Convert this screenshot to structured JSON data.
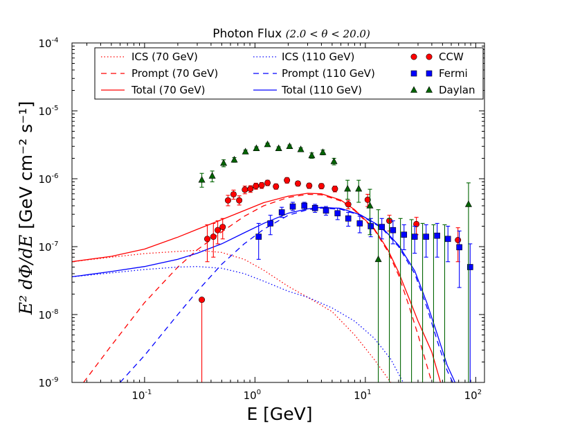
{
  "chart_data": {
    "type": "line",
    "title": "Photon Flux",
    "title_math": "(2.0 < θ < 20.0)",
    "xlabel": "E [GeV]",
    "ylabel_math": "E² dΦ/dE",
    "ylabel_units": "[GeV cm⁻² s⁻¹]",
    "x_scale": "log",
    "y_scale": "log",
    "xlim": [
      0.022,
      120
    ],
    "ylim": [
      1e-09,
      0.0001
    ],
    "x_ticks": [
      {
        "base": "10",
        "exp": "-1",
        "value": 0.1
      },
      {
        "base": "10",
        "exp": "0",
        "value": 1
      },
      {
        "base": "10",
        "exp": "1",
        "value": 10
      },
      {
        "base": "10",
        "exp": "2",
        "value": 100
      }
    ],
    "y_ticks": [
      {
        "base": "10",
        "exp": "-9",
        "value": 1e-09
      },
      {
        "base": "10",
        "exp": "-8",
        "value": 1e-08
      },
      {
        "base": "10",
        "exp": "-7",
        "value": 1e-07
      },
      {
        "base": "10",
        "exp": "-6",
        "value": 1e-06
      },
      {
        "base": "10",
        "exp": "-5",
        "value": 1e-05
      },
      {
        "base": "10",
        "exp": "-4",
        "value": 0.0001
      }
    ],
    "lines": [
      {
        "name": "ICS (70 GeV)",
        "color": "#ff0000",
        "style": "dotted",
        "points": [
          [
            0.022,
            6e-08
          ],
          [
            0.05,
            7e-08
          ],
          [
            0.1,
            7.9e-08
          ],
          [
            0.2,
            8.5e-08
          ],
          [
            0.3,
            8.8e-08
          ],
          [
            0.5,
            8.2e-08
          ],
          [
            0.8,
            6.5e-08
          ],
          [
            1.2,
            4.5e-08
          ],
          [
            2,
            2.6e-08
          ],
          [
            3,
            1.8e-08
          ],
          [
            5,
            1.1e-08
          ],
          [
            8,
            5e-09
          ],
          [
            12,
            2.2e-09
          ],
          [
            17,
            1e-09
          ]
        ]
      },
      {
        "name": "Prompt (70 GeV)",
        "color": "#ff0000",
        "style": "dashed",
        "points": [
          [
            0.028,
            1e-09
          ],
          [
            0.05,
            3.5e-09
          ],
          [
            0.1,
            1.5e-08
          ],
          [
            0.2,
            5e-08
          ],
          [
            0.3,
            9e-08
          ],
          [
            0.5,
            1.65e-07
          ],
          [
            0.8,
            2.8e-07
          ],
          [
            1.2,
            4e-07
          ],
          [
            2,
            5.3e-07
          ],
          [
            3,
            5.9e-07
          ],
          [
            4,
            5.8e-07
          ],
          [
            6,
            4.7e-07
          ],
          [
            8,
            3.4e-07
          ],
          [
            12,
            1.8e-07
          ],
          [
            16,
            8.5e-08
          ],
          [
            20,
            3.8e-08
          ],
          [
            25,
            1.3e-08
          ],
          [
            30,
            5e-09
          ],
          [
            36,
            1.8e-09
          ],
          [
            40,
            1e-09
          ]
        ]
      },
      {
        "name": "Total (70 GeV)",
        "color": "#ff0000",
        "style": "solid",
        "points": [
          [
            0.022,
            6e-08
          ],
          [
            0.05,
            7.2e-08
          ],
          [
            0.1,
            9.2e-08
          ],
          [
            0.2,
            1.38e-07
          ],
          [
            0.3,
            1.8e-07
          ],
          [
            0.5,
            2.5e-07
          ],
          [
            0.8,
            3.4e-07
          ],
          [
            1.2,
            4.45e-07
          ],
          [
            2,
            5.55e-07
          ],
          [
            3,
            6.1e-07
          ],
          [
            4,
            6e-07
          ],
          [
            6,
            4.85e-07
          ],
          [
            8,
            3.5e-07
          ],
          [
            12,
            1.85e-07
          ],
          [
            16,
            9e-08
          ],
          [
            20,
            4.2e-08
          ],
          [
            25,
            1.7e-08
          ],
          [
            30,
            8e-09
          ],
          [
            40,
            2.8e-09
          ],
          [
            48,
            1e-09
          ]
        ]
      },
      {
        "name": "ICS (110 GeV)",
        "color": "#0000ff",
        "style": "dotted",
        "points": [
          [
            0.022,
            3.6e-08
          ],
          [
            0.05,
            4.1e-08
          ],
          [
            0.1,
            4.6e-08
          ],
          [
            0.2,
            5e-08
          ],
          [
            0.3,
            5.1e-08
          ],
          [
            0.5,
            4.8e-08
          ],
          [
            0.8,
            4e-08
          ],
          [
            1.2,
            3.1e-08
          ],
          [
            2,
            2.2e-08
          ],
          [
            3,
            1.8e-08
          ],
          [
            5,
            1.25e-08
          ],
          [
            8,
            8e-09
          ],
          [
            12,
            4.5e-09
          ],
          [
            17,
            2.2e-09
          ],
          [
            22,
            1e-09
          ]
        ]
      },
      {
        "name": "Prompt (110 GeV)",
        "color": "#0000ff",
        "style": "dashed",
        "points": [
          [
            0.06,
            1e-09
          ],
          [
            0.1,
            2.5e-09
          ],
          [
            0.2,
            1e-08
          ],
          [
            0.3,
            2.2e-08
          ],
          [
            0.5,
            5.5e-08
          ],
          [
            0.8,
            1.1e-07
          ],
          [
            1.2,
            1.8e-07
          ],
          [
            2,
            2.9e-07
          ],
          [
            3,
            3.5e-07
          ],
          [
            4,
            3.7e-07
          ],
          [
            6,
            3.55e-07
          ],
          [
            9,
            2.9e-07
          ],
          [
            14,
            1.9e-07
          ],
          [
            20,
            1e-07
          ],
          [
            28,
            4e-08
          ],
          [
            36,
            1.3e-08
          ],
          [
            45,
            4e-09
          ],
          [
            55,
            1.5e-09
          ],
          [
            62,
            1e-09
          ]
        ]
      },
      {
        "name": "Total (110 GeV)",
        "color": "#0000ff",
        "style": "solid",
        "points": [
          [
            0.022,
            3.6e-08
          ],
          [
            0.05,
            4.3e-08
          ],
          [
            0.1,
            5.1e-08
          ],
          [
            0.2,
            6.5e-08
          ],
          [
            0.3,
            8e-08
          ],
          [
            0.5,
            1.1e-07
          ],
          [
            0.8,
            1.6e-07
          ],
          [
            1.2,
            2.2e-07
          ],
          [
            2,
            3.1e-07
          ],
          [
            3,
            3.6e-07
          ],
          [
            4,
            3.8e-07
          ],
          [
            6,
            3.65e-07
          ],
          [
            9,
            2.95e-07
          ],
          [
            14,
            1.95e-07
          ],
          [
            20,
            1.05e-07
          ],
          [
            28,
            4.4e-08
          ],
          [
            36,
            1.5e-08
          ],
          [
            45,
            5e-09
          ],
          [
            55,
            1.8e-09
          ],
          [
            65,
            1e-09
          ]
        ]
      }
    ],
    "point_series": [
      {
        "name": "CCW",
        "color": "#ff0000",
        "marker": "circle",
        "points": [
          {
            "x": 0.33,
            "y": 1.65e-08,
            "lo": 1e-09,
            "hi": 1.65e-08
          },
          {
            "x": 0.37,
            "y": 1.3e-07,
            "lo": 6e-08,
            "hi": 2.1e-07
          },
          {
            "x": 0.42,
            "y": 1.4e-07,
            "lo": 7e-08,
            "hi": 2.2e-07
          },
          {
            "x": 0.46,
            "y": 1.75e-07,
            "lo": 1.1e-07,
            "hi": 2.4e-07
          },
          {
            "x": 0.51,
            "y": 1.95e-07,
            "lo": 1.3e-07,
            "hi": 2.6e-07
          },
          {
            "x": 0.57,
            "y": 4.8e-07,
            "lo": 4e-07,
            "hi": 5.7e-07
          },
          {
            "x": 0.64,
            "y": 5.9e-07,
            "lo": 5e-07,
            "hi": 6.8e-07
          },
          {
            "x": 0.72,
            "y": 4.8e-07,
            "lo": 4.1e-07,
            "hi": 5.6e-07
          },
          {
            "x": 0.81,
            "y": 6.9e-07,
            "lo": 6e-07,
            "hi": 7.8e-07
          },
          {
            "x": 0.91,
            "y": 7.1e-07,
            "lo": 6.3e-07,
            "hi": 7.9e-07
          },
          {
            "x": 1.02,
            "y": 7.8e-07,
            "lo": 7e-07,
            "hi": 8.6e-07
          },
          {
            "x": 1.15,
            "y": 8e-07,
            "lo": 7.2e-07,
            "hi": 8.8e-07
          },
          {
            "x": 1.3,
            "y": 8.7e-07,
            "lo": 7.9e-07,
            "hi": 9.5e-07
          },
          {
            "x": 1.55,
            "y": 7.7e-07,
            "lo": 7e-07,
            "hi": 8.4e-07
          },
          {
            "x": 1.95,
            "y": 9.5e-07,
            "lo": 8.6e-07,
            "hi": 1.04e-06
          },
          {
            "x": 2.45,
            "y": 8.5e-07,
            "lo": 7.8e-07,
            "hi": 9.2e-07
          },
          {
            "x": 3.1,
            "y": 7.9e-07,
            "lo": 7.2e-07,
            "hi": 8.6e-07
          },
          {
            "x": 4.0,
            "y": 7.8e-07,
            "lo": 7.1e-07,
            "hi": 8.5e-07
          },
          {
            "x": 5.3,
            "y": 7.1e-07,
            "lo": 6.4e-07,
            "hi": 7.8e-07
          },
          {
            "x": 7.0,
            "y": 4.2e-07,
            "lo": 3.6e-07,
            "hi": 4.8e-07
          },
          {
            "x": 10.5,
            "y": 4.9e-07,
            "lo": 3.9e-07,
            "hi": 5.9e-07
          },
          {
            "x": 16.5,
            "y": 2.4e-07,
            "lo": 1.7e-07,
            "hi": 2.9e-07
          },
          {
            "x": 29,
            "y": 2.15e-07,
            "lo": 1.5e-07,
            "hi": 2.7e-07
          },
          {
            "x": 69,
            "y": 1.25e-07,
            "lo": 6e-08,
            "hi": 1.9e-07
          }
        ]
      },
      {
        "name": "Fermi",
        "color": "#0000ff",
        "marker": "square",
        "points": [
          {
            "x": 1.08,
            "y": 1.4e-07,
            "lo": 6.5e-08,
            "hi": 2.2e-07
          },
          {
            "x": 1.38,
            "y": 2.2e-07,
            "lo": 1.5e-07,
            "hi": 2.9e-07
          },
          {
            "x": 1.75,
            "y": 3.2e-07,
            "lo": 2.7e-07,
            "hi": 3.8e-07
          },
          {
            "x": 2.2,
            "y": 3.9e-07,
            "lo": 3.4e-07,
            "hi": 4.5e-07
          },
          {
            "x": 2.8,
            "y": 4e-07,
            "lo": 3.5e-07,
            "hi": 4.5e-07
          },
          {
            "x": 3.5,
            "y": 3.7e-07,
            "lo": 3.2e-07,
            "hi": 4.2e-07
          },
          {
            "x": 4.4,
            "y": 3.4e-07,
            "lo": 2.9e-07,
            "hi": 3.9e-07
          },
          {
            "x": 5.6,
            "y": 3.1e-07,
            "lo": 2.5e-07,
            "hi": 3.7e-07
          },
          {
            "x": 7.0,
            "y": 2.6e-07,
            "lo": 2e-07,
            "hi": 3.2e-07
          },
          {
            "x": 8.9,
            "y": 2.2e-07,
            "lo": 1.6e-07,
            "hi": 2.8e-07
          },
          {
            "x": 11.2,
            "y": 2e-07,
            "lo": 1.4e-07,
            "hi": 2.6e-07
          },
          {
            "x": 14.1,
            "y": 1.95e-07,
            "lo": 1.3e-07,
            "hi": 2.6e-07
          },
          {
            "x": 17.8,
            "y": 1.75e-07,
            "lo": 1.1e-07,
            "hi": 2.4e-07
          },
          {
            "x": 22.4,
            "y": 1.5e-07,
            "lo": 9e-08,
            "hi": 2.1e-07
          },
          {
            "x": 28,
            "y": 1.4e-07,
            "lo": 8e-08,
            "hi": 2e-07
          },
          {
            "x": 35.5,
            "y": 1.4e-07,
            "lo": 7e-08,
            "hi": 2.1e-07
          },
          {
            "x": 44.7,
            "y": 1.45e-07,
            "lo": 7e-08,
            "hi": 2.2e-07
          },
          {
            "x": 56,
            "y": 1.3e-07,
            "lo": 6e-08,
            "hi": 2e-07
          },
          {
            "x": 71,
            "y": 9.8e-08,
            "lo": 2.5e-08,
            "hi": 1.7e-07
          },
          {
            "x": 89,
            "y": 5e-08,
            "lo": 1e-09,
            "hi": 1.1e-07
          }
        ]
      },
      {
        "name": "Daylan",
        "color": "#006400",
        "marker": "triangle",
        "points": [
          {
            "x": 0.33,
            "y": 9.6e-07,
            "lo": 7.5e-07,
            "hi": 1.2e-06
          },
          {
            "x": 0.41,
            "y": 1.1e-06,
            "lo": 9e-07,
            "hi": 1.3e-06
          },
          {
            "x": 0.52,
            "y": 1.7e-06,
            "lo": 1.5e-06,
            "hi": 1.9e-06
          },
          {
            "x": 0.65,
            "y": 1.9e-06,
            "lo": 1.75e-06,
            "hi": 2.05e-06
          },
          {
            "x": 0.82,
            "y": 2.5e-06,
            "lo": 2.35e-06,
            "hi": 2.65e-06
          },
          {
            "x": 1.03,
            "y": 2.8e-06,
            "lo": 2.65e-06,
            "hi": 2.95e-06
          },
          {
            "x": 1.3,
            "y": 3.2e-06,
            "lo": 3.05e-06,
            "hi": 3.35e-06
          },
          {
            "x": 1.64,
            "y": 2.8e-06,
            "lo": 2.65e-06,
            "hi": 2.95e-06
          },
          {
            "x": 2.06,
            "y": 3e-06,
            "lo": 2.85e-06,
            "hi": 3.15e-06
          },
          {
            "x": 2.6,
            "y": 2.7e-06,
            "lo": 2.55e-06,
            "hi": 2.85e-06
          },
          {
            "x": 3.27,
            "y": 2.2e-06,
            "lo": 2e-06,
            "hi": 2.4e-06
          },
          {
            "x": 4.12,
            "y": 2.45e-06,
            "lo": 2.25e-06,
            "hi": 2.65e-06
          },
          {
            "x": 5.2,
            "y": 1.8e-06,
            "lo": 1.6e-06,
            "hi": 2e-06
          },
          {
            "x": 6.9,
            "y": 7.1e-07,
            "lo": 5e-07,
            "hi": 9.5e-07
          },
          {
            "x": 8.7,
            "y": 7.1e-07,
            "lo": 4.5e-07,
            "hi": 9.5e-07
          },
          {
            "x": 11,
            "y": 4e-07,
            "lo": 1.5e-07,
            "hi": 7e-07
          },
          {
            "x": 13.1,
            "y": 6.5e-08,
            "lo": 1e-09,
            "hi": 3.5e-07
          },
          {
            "x": 16.5,
            "y": 1e-09,
            "lo": 1e-09,
            "hi": 2.6e-07
          },
          {
            "x": 20.8,
            "y": 1e-09,
            "lo": 1e-09,
            "hi": 2.6e-07
          },
          {
            "x": 26.2,
            "y": 1e-09,
            "lo": 1e-09,
            "hi": 2.5e-07
          },
          {
            "x": 33,
            "y": 1e-09,
            "lo": 1e-09,
            "hi": 2.2e-07
          },
          {
            "x": 41.5,
            "y": 1e-09,
            "lo": 1e-09,
            "hi": 2.1e-07
          },
          {
            "x": 52.3,
            "y": 1e-09,
            "lo": 1e-09,
            "hi": 2.1e-07
          },
          {
            "x": 86,
            "y": 4.2e-07,
            "lo": 1e-09,
            "hi": 8.7e-07
          }
        ]
      }
    ],
    "legend": {
      "placement": "top",
      "entries": [
        {
          "label": "ICS (70 GeV)",
          "color": "#ff0000",
          "kind": "dotted"
        },
        {
          "label": "Prompt (70 GeV)",
          "color": "#ff0000",
          "kind": "dashed"
        },
        {
          "label": "Total (70 GeV)",
          "color": "#ff0000",
          "kind": "solid"
        },
        {
          "label": "ICS (110 GeV)",
          "color": "#0000ff",
          "kind": "dotted"
        },
        {
          "label": "Prompt (110 GeV)",
          "color": "#0000ff",
          "kind": "dashed"
        },
        {
          "label": "Total (110 GeV)",
          "color": "#0000ff",
          "kind": "solid"
        },
        {
          "label": "CCW",
          "color": "#ff0000",
          "kind": "circle"
        },
        {
          "label": "Fermi",
          "color": "#0000ff",
          "kind": "square"
        },
        {
          "label": "Daylan",
          "color": "#006400",
          "kind": "triangle"
        }
      ]
    }
  }
}
